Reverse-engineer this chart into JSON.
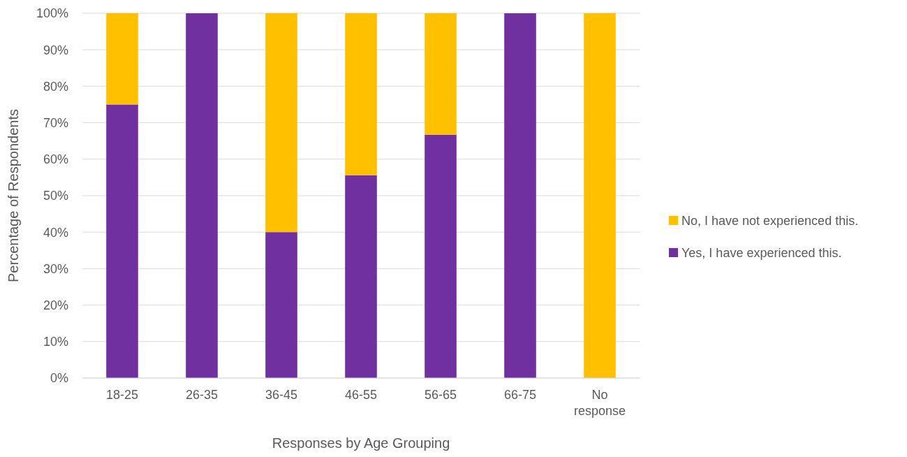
{
  "chart_data": {
    "type": "bar",
    "stacked": true,
    "xlabel": "Responses by Age Grouping",
    "ylabel": "Percentage of Respondents",
    "categories": [
      "18-25",
      "26-35",
      "36-45",
      "46-55",
      "56-65",
      "66-75",
      "No response"
    ],
    "series": [
      {
        "name": "Yes, I have experienced this.",
        "color": "#7030a0",
        "values": [
          75,
          100,
          40,
          55.6,
          66.7,
          100,
          0
        ]
      },
      {
        "name": "No, I have not experienced this.",
        "color": "#ffc000",
        "values": [
          25,
          0,
          60,
          44.4,
          33.3,
          0,
          100
        ]
      }
    ],
    "ylim": [
      0,
      100
    ],
    "yticks": [
      {
        "value": 0,
        "label": "0%"
      },
      {
        "value": 10,
        "label": "10%"
      },
      {
        "value": 20,
        "label": "20%"
      },
      {
        "value": 30,
        "label": "30%"
      },
      {
        "value": 40,
        "label": "40%"
      },
      {
        "value": 50,
        "label": "50%"
      },
      {
        "value": 60,
        "label": "60%"
      },
      {
        "value": 70,
        "label": "70%"
      },
      {
        "value": 80,
        "label": "80%"
      },
      {
        "value": 90,
        "label": "90%"
      },
      {
        "value": 100,
        "label": "100%"
      }
    ],
    "grid": "y",
    "legend": "right"
  }
}
